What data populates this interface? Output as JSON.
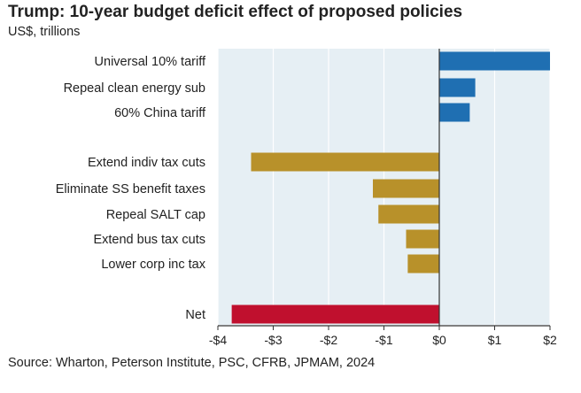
{
  "title": "Trump: 10-year budget deficit effect of proposed policies",
  "subtitle": "US$, trillions",
  "source": "Source: Wharton, Peterson Institute, PSC, CFRB, JPMAM, 2024",
  "colors": {
    "background": "#e6eff4",
    "grid": "#ffffff",
    "revenue": "#1f6fb2",
    "cuts": "#b8912a",
    "net": "#c0102e",
    "axis": "#333333"
  },
  "chart_data": {
    "type": "bar",
    "orientation": "horizontal",
    "title": "Trump: 10-year budget deficit effect of proposed policies",
    "subtitle": "US$, trillions",
    "xlim": [
      -4,
      2
    ],
    "grid": true,
    "ticks": [
      {
        "value": -4,
        "label": "-$4"
      },
      {
        "value": -3,
        "label": "-$3"
      },
      {
        "value": -2,
        "label": "-$2"
      },
      {
        "value": -1,
        "label": "-$1"
      },
      {
        "value": 0,
        "label": "$0"
      },
      {
        "value": 1,
        "label": "$1"
      },
      {
        "value": 2,
        "label": "$2"
      }
    ],
    "bars": [
      {
        "label": "Universal 10% tariff",
        "value": 2.0,
        "group": "revenue"
      },
      {
        "label": "Repeal clean energy sub",
        "value": 0.65,
        "group": "revenue"
      },
      {
        "label": "60% China tariff",
        "value": 0.55,
        "group": "revenue"
      },
      {
        "label": "Extend indiv tax cuts",
        "value": -3.4,
        "group": "cuts"
      },
      {
        "label": "Eliminate SS benefit taxes",
        "value": -1.2,
        "group": "cuts"
      },
      {
        "label": "Repeal SALT cap",
        "value": -1.1,
        "group": "cuts"
      },
      {
        "label": "Extend bus tax cuts",
        "value": -0.6,
        "group": "cuts"
      },
      {
        "label": "Lower corp inc tax",
        "value": -0.57,
        "group": "cuts"
      },
      {
        "label": "Net",
        "value": -3.75,
        "group": "net"
      }
    ]
  }
}
